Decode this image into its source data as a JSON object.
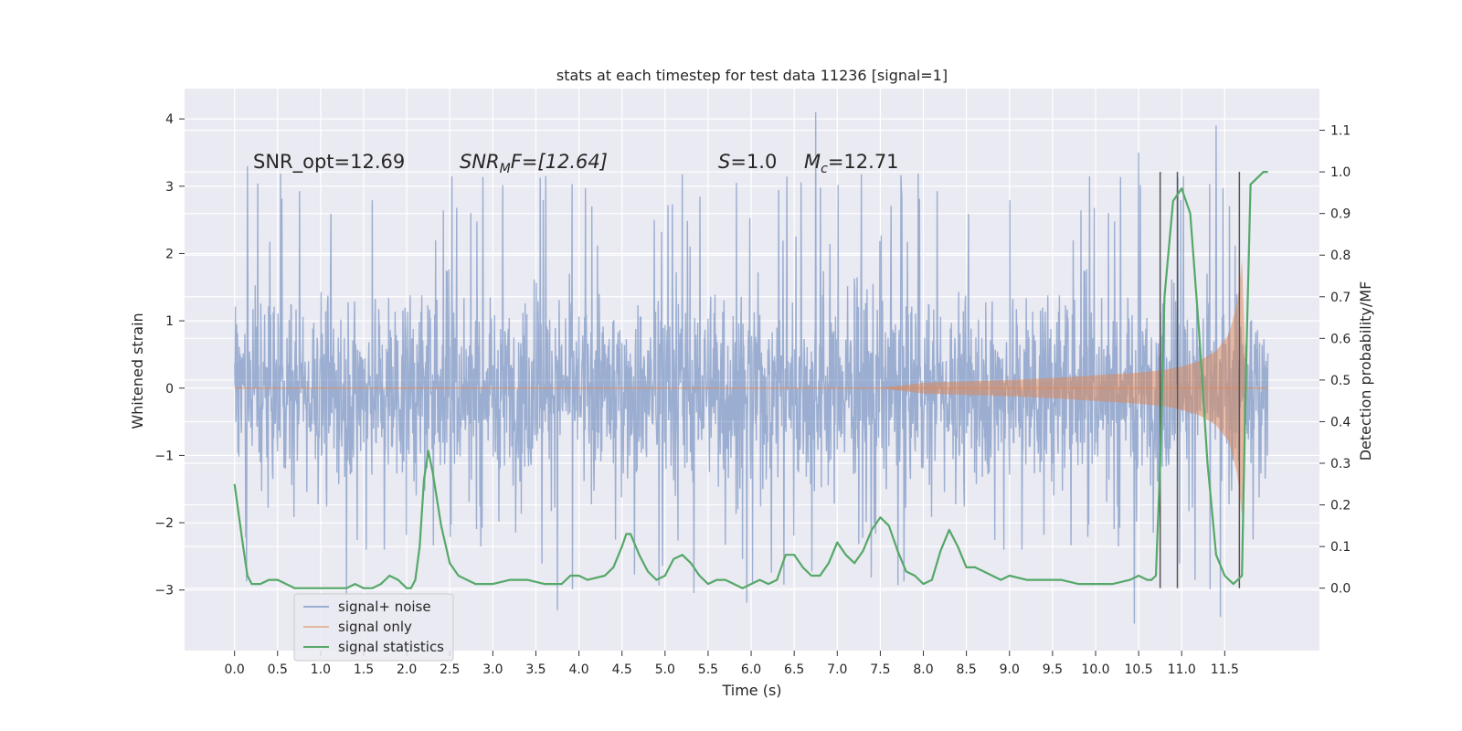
{
  "chart_data": {
    "type": "line",
    "title": "stats at each timestep for test data 11236 [signal=1]",
    "xlabel": "Time (s)",
    "ylabel": "Whitened strain",
    "y2label": "Detection probability/MF",
    "xlim": [
      -0.58,
      12.6
    ],
    "ylim": [
      -3.9,
      4.45
    ],
    "y2lim": [
      -0.15,
      1.2
    ],
    "x_ticks": [
      "0.0",
      "0.5",
      "1.0",
      "1.5",
      "2.0",
      "2.5",
      "3.0",
      "3.5",
      "4.0",
      "4.5",
      "5.0",
      "5.5",
      "6.0",
      "6.5",
      "7.0",
      "7.5",
      "8.0",
      "8.5",
      "9.0",
      "9.5",
      "10.0",
      "10.5",
      "11.0",
      "11.5"
    ],
    "y_ticks": [
      "4",
      "3",
      "2",
      "1",
      "0",
      "−1",
      "−2",
      "−3"
    ],
    "y2_ticks": [
      "1.1",
      "1.0",
      "0.9",
      "0.8",
      "0.7",
      "0.6",
      "0.5",
      "0.4",
      "0.3",
      "0.2",
      "0.1",
      "0.0"
    ],
    "grid": true,
    "legend_position": "lower-left",
    "annotations": {
      "snr_opt": "SNR_opt=12.69",
      "snr_mf_var": "SNR",
      "snr_mf_sub": "M",
      "snr_mf_tail": "F=[12.64]",
      "s_var": "S",
      "s_tail": "=1.0",
      "mc_var": "M",
      "mc_sub": "c",
      "mc_tail": "=12.71"
    },
    "vertical_lines_x": [
      10.75,
      10.95,
      11.67
    ],
    "series": [
      {
        "name": "signal+ noise",
        "color": "#4c72b0",
        "x_range": [
          0.0,
          12.0
        ],
        "typical_band": [
          -1.5,
          1.5
        ],
        "peak_range": [
          -3.5,
          4.1
        ],
        "peaks": [
          [
            6.75,
            4.1
          ],
          [
            11.4,
            3.9
          ],
          [
            10.5,
            3.5
          ],
          [
            0.15,
            3.3
          ],
          [
            11.45,
            -3.4
          ],
          [
            10.45,
            -3.5
          ],
          [
            3.75,
            -3.3
          ],
          [
            1.3,
            -3.1
          ]
        ]
      },
      {
        "name": "signal only",
        "color": "#dd8452",
        "x": [
          0.0,
          7.5,
          8.0,
          8.5,
          9.0,
          9.5,
          10.0,
          10.5,
          10.8,
          11.0,
          11.2,
          11.4,
          11.55,
          11.65,
          11.7,
          11.75,
          12.0
        ],
        "amplitude": [
          0.0,
          0.0,
          0.08,
          0.1,
          0.12,
          0.15,
          0.19,
          0.23,
          0.27,
          0.32,
          0.4,
          0.55,
          0.8,
          1.3,
          1.9,
          0.0,
          0.0
        ]
      },
      {
        "name": "signal statistics",
        "color": "#55a868",
        "axis": "right",
        "x": [
          0.0,
          0.1,
          0.15,
          0.2,
          0.3,
          0.4,
          0.5,
          0.6,
          0.7,
          0.8,
          0.9,
          1.0,
          1.1,
          1.2,
          1.3,
          1.4,
          1.5,
          1.6,
          1.7,
          1.8,
          1.9,
          2.0,
          2.05,
          2.1,
          2.15,
          2.2,
          2.25,
          2.3,
          2.4,
          2.5,
          2.6,
          2.7,
          2.8,
          3.0,
          3.2,
          3.4,
          3.6,
          3.8,
          3.9,
          4.0,
          4.1,
          4.3,
          4.4,
          4.5,
          4.55,
          4.6,
          4.7,
          4.8,
          4.9,
          5.0,
          5.1,
          5.2,
          5.3,
          5.4,
          5.5,
          5.6,
          5.7,
          5.8,
          5.9,
          6.0,
          6.1,
          6.2,
          6.3,
          6.4,
          6.5,
          6.6,
          6.7,
          6.8,
          6.9,
          7.0,
          7.1,
          7.2,
          7.3,
          7.4,
          7.5,
          7.6,
          7.7,
          7.8,
          7.9,
          8.0,
          8.1,
          8.2,
          8.3,
          8.4,
          8.5,
          8.6,
          8.7,
          8.8,
          8.9,
          9.0,
          9.2,
          9.4,
          9.6,
          9.8,
          10.0,
          10.2,
          10.4,
          10.5,
          10.6,
          10.65,
          10.7,
          10.75,
          10.8,
          10.9,
          11.0,
          11.1,
          11.2,
          11.3,
          11.4,
          11.5,
          11.6,
          11.7,
          11.72,
          11.75,
          11.8,
          11.9,
          11.95,
          12.0
        ],
        "values": [
          0.25,
          0.1,
          0.03,
          0.01,
          0.01,
          0.02,
          0.02,
          0.01,
          0.0,
          0.0,
          0.0,
          0.0,
          0.0,
          0.0,
          0.0,
          0.01,
          0.0,
          0.0,
          0.01,
          0.03,
          0.02,
          0.0,
          0.0,
          0.02,
          0.1,
          0.26,
          0.33,
          0.28,
          0.15,
          0.06,
          0.03,
          0.02,
          0.01,
          0.01,
          0.02,
          0.02,
          0.01,
          0.01,
          0.03,
          0.03,
          0.02,
          0.03,
          0.05,
          0.1,
          0.13,
          0.13,
          0.08,
          0.04,
          0.02,
          0.03,
          0.07,
          0.08,
          0.06,
          0.03,
          0.01,
          0.02,
          0.02,
          0.01,
          0.0,
          0.01,
          0.02,
          0.01,
          0.02,
          0.08,
          0.08,
          0.05,
          0.03,
          0.03,
          0.06,
          0.11,
          0.08,
          0.06,
          0.09,
          0.14,
          0.17,
          0.15,
          0.09,
          0.04,
          0.03,
          0.01,
          0.02,
          0.09,
          0.14,
          0.1,
          0.05,
          0.05,
          0.04,
          0.03,
          0.02,
          0.03,
          0.02,
          0.02,
          0.02,
          0.01,
          0.01,
          0.01,
          0.02,
          0.03,
          0.02,
          0.02,
          0.03,
          0.3,
          0.7,
          0.93,
          0.96,
          0.9,
          0.62,
          0.3,
          0.08,
          0.03,
          0.01,
          0.03,
          0.25,
          0.55,
          0.97,
          0.99,
          1.0,
          1.0
        ]
      }
    ]
  }
}
